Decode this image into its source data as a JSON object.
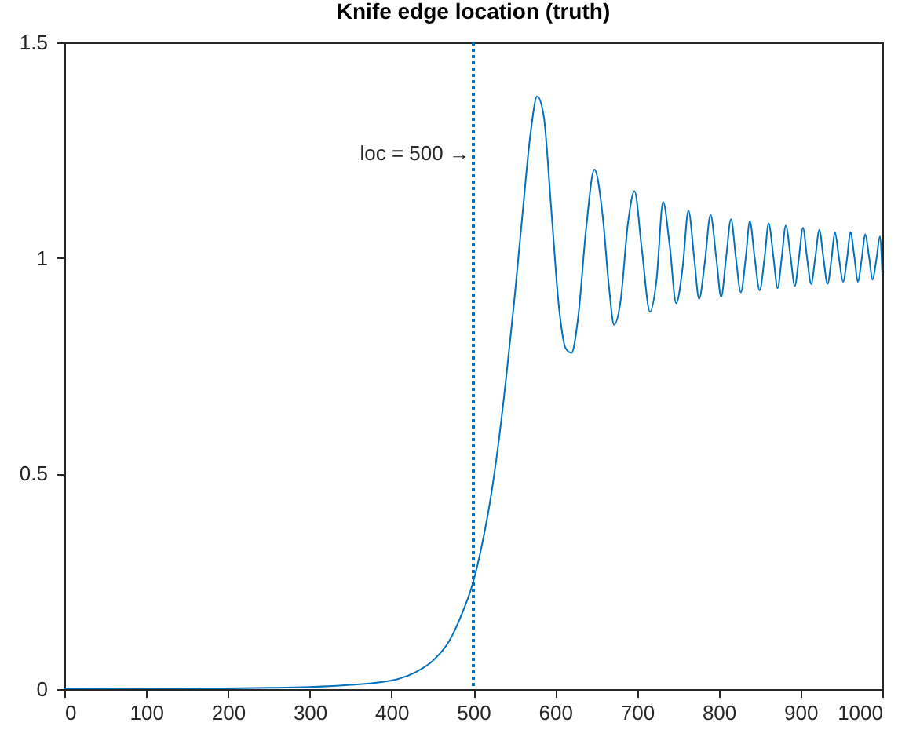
{
  "chart_data": {
    "type": "line",
    "title": "Knife edge location (truth)",
    "x": [
      0,
      100,
      200,
      250,
      300,
      350,
      400,
      430,
      450,
      470,
      485,
      500,
      510,
      520,
      530,
      540,
      550,
      560,
      570,
      578,
      586,
      595,
      605,
      613,
      620,
      628,
      638,
      648,
      658,
      666,
      672,
      680,
      689,
      697,
      706,
      716,
      724,
      732,
      740,
      748,
      756,
      763,
      770,
      776,
      783,
      790,
      797,
      803,
      809,
      815,
      821,
      827,
      833,
      838,
      844,
      850,
      856,
      861,
      867,
      872,
      877,
      882,
      888,
      893,
      898,
      903,
      908,
      913,
      918,
      923,
      928,
      933,
      938,
      942,
      947,
      952,
      957,
      961,
      966,
      970,
      975,
      979,
      984,
      988,
      993,
      997,
      1000
    ],
    "series": [
      {
        "color": "#0072bd",
        "values": [
          0,
          0.001,
          0.002,
          0.003,
          0.005,
          0.01,
          0.02,
          0.04,
          0.065,
          0.11,
          0.17,
          0.25,
          0.33,
          0.43,
          0.56,
          0.72,
          0.9,
          1.1,
          1.29,
          1.375,
          1.33,
          1.12,
          0.88,
          0.79,
          0.78,
          0.86,
          1.07,
          1.205,
          1.1,
          0.93,
          0.845,
          0.9,
          1.08,
          1.155,
          1.02,
          0.875,
          0.95,
          1.13,
          1.03,
          0.895,
          0.98,
          1.11,
          1.0,
          0.905,
          0.99,
          1.1,
          1.0,
          0.91,
          1.0,
          1.09,
          1.0,
          0.92,
          1.0,
          1.085,
          1.0,
          0.925,
          1.0,
          1.08,
          1.0,
          0.93,
          1.0,
          1.075,
          1.0,
          0.935,
          1.0,
          1.07,
          1.0,
          0.94,
          1.0,
          1.065,
          1.0,
          0.94,
          1.0,
          1.06,
          1.0,
          0.945,
          1.0,
          1.06,
          1.0,
          0.945,
          1.0,
          1.055,
          1.0,
          0.95,
          1.0,
          1.05,
          0.96
        ]
      }
    ],
    "xlim": [
      0,
      1000
    ],
    "xticks": [
      0,
      100,
      200,
      300,
      400,
      500,
      600,
      700,
      800,
      900,
      1000
    ],
    "ylim": [
      0,
      1.5
    ],
    "yticks": [
      0,
      0.5,
      1,
      1.5
    ],
    "grid": false,
    "ref_lines": [
      {
        "axis": "x",
        "value": 500,
        "color": "#0072bd",
        "line_style": "dotted"
      }
    ],
    "annotations": [
      "loc = 500 →"
    ]
  }
}
